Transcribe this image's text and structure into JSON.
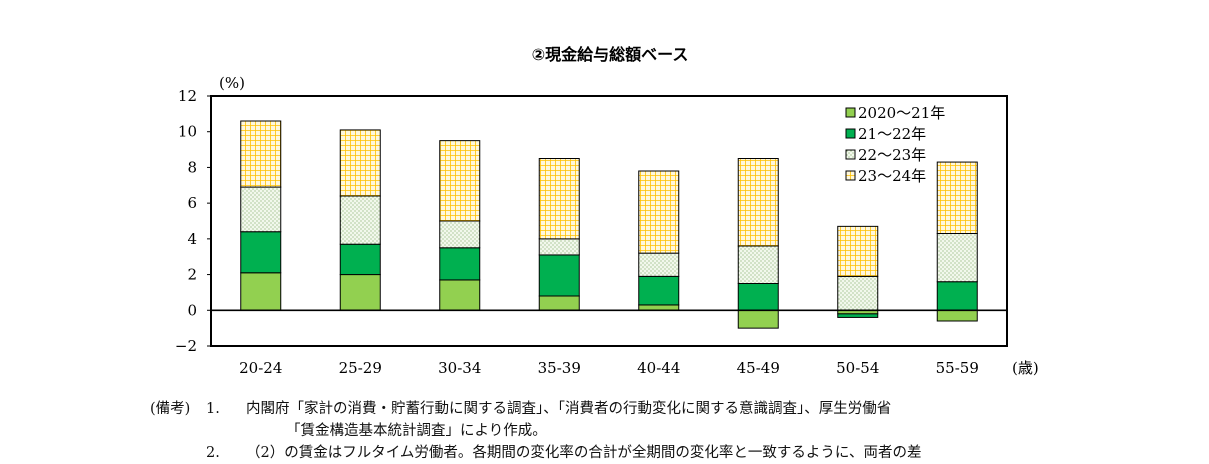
{
  "chart_data": {
    "type": "bar",
    "stacked": true,
    "title": "②現金給与総額ベース",
    "ylabel": "(%)",
    "xunit": "(歳)",
    "ylim": [
      -2,
      12
    ],
    "yticks": [
      -2,
      0,
      2,
      4,
      6,
      8,
      10,
      12
    ],
    "ytick_labels": [
      "−2",
      "0",
      "2",
      "4",
      "6",
      "8",
      "10",
      "12"
    ],
    "categories": [
      "20-24",
      "25-29",
      "30-34",
      "35-39",
      "40-44",
      "45-49",
      "50-54",
      "55-59"
    ],
    "series": [
      {
        "name": "2020〜21年",
        "values": [
          2.1,
          2.0,
          1.7,
          0.8,
          0.3,
          -1.0,
          -0.2,
          -0.6
        ],
        "color": "#92d050",
        "pattern": "solid"
      },
      {
        "name": "21〜22年",
        "values": [
          2.3,
          1.7,
          1.8,
          2.3,
          1.6,
          1.5,
          -0.2,
          1.6
        ],
        "color": "#00b050",
        "pattern": "solid"
      },
      {
        "name": "22〜23年",
        "values": [
          2.5,
          2.7,
          1.5,
          0.9,
          1.3,
          2.1,
          1.9,
          2.7
        ],
        "color": "#e2efda",
        "pattern": "dots"
      },
      {
        "name": "23〜24年",
        "values": [
          3.7,
          3.7,
          4.5,
          4.5,
          4.6,
          4.9,
          2.8,
          4.0
        ],
        "color": "#ffc000",
        "pattern": "grid"
      }
    ],
    "grid": false,
    "legend_position": "top-right (inside plot)"
  },
  "notes": {
    "label": "(備考)",
    "items": [
      {
        "num": "1.",
        "lines": [
          "内閣府「家計の消費・貯蓄行動に関する調査」、「消費者の行動変化に関する意識調査」、厚生労働省",
          "「賃金構造基本統計調査」により作成。"
        ]
      },
      {
        "num": "2.",
        "lines": [
          "（2）の賃金はフルタイム労働者。各期間の変化率の合計が全期間の変化率と一致するように、両者の差"
        ]
      }
    ]
  }
}
